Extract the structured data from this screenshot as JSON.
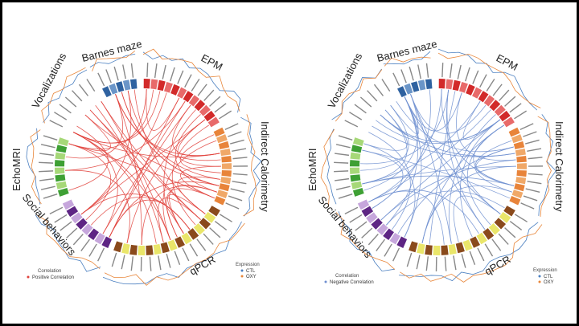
{
  "panels": [
    {
      "id": "positive",
      "chord_color": "#e0403a",
      "correlation_legend": {
        "title": "Correlation",
        "item": "Positive Correlation",
        "color": "#e0403a"
      },
      "expression_legend": {
        "title": "Expression",
        "items": [
          {
            "label": "CTL",
            "color": "#4a7fc0"
          },
          {
            "label": "OXY",
            "color": "#e8863a"
          }
        ]
      }
    },
    {
      "id": "negative",
      "chord_color": "#6f8fd0",
      "correlation_legend": {
        "title": "Correlation",
        "item": "Negative Correlation",
        "color": "#6f8fd0"
      },
      "expression_legend": {
        "title": "Expression",
        "items": [
          {
            "label": "CTL",
            "color": "#4a7fc0"
          },
          {
            "label": "OXY",
            "color": "#e8863a"
          }
        ]
      }
    }
  ],
  "categories": [
    {
      "name": "Barnes maze",
      "colors": [
        "#2f62a0",
        "#6a95c8"
      ]
    },
    {
      "name": "EPM",
      "colors": [
        "#d22a2a",
        "#e86a6a"
      ]
    },
    {
      "name": "Indirect Calorimetry",
      "colors": [
        "#e8843a",
        "#f0a868"
      ]
    },
    {
      "name": "qPCR",
      "colors": [
        "#8a4a1c",
        "#eae66a"
      ]
    },
    {
      "name": "Social behaviors",
      "colors": [
        "#5e2584",
        "#c6a6dc"
      ]
    },
    {
      "name": "EchoMRI",
      "colors": [
        "#3ea034",
        "#a6d878"
      ]
    },
    {
      "name": "Vocalizations",
      "colors": [
        "#ffffff",
        "#ffffff"
      ]
    }
  ]
}
